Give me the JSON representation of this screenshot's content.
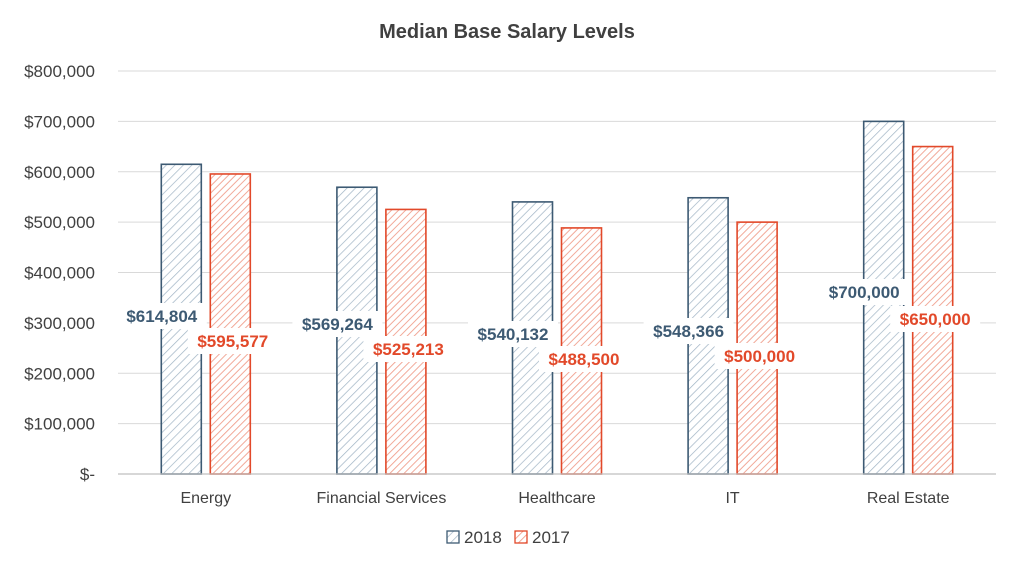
{
  "chart_data": {
    "type": "bar",
    "title": "Median Base Salary Levels",
    "xlabel": "",
    "ylabel": "",
    "categories": [
      "Energy",
      "Financial Services",
      "Healthcare",
      "IT",
      "Real Estate"
    ],
    "ylim": [
      0,
      800000
    ],
    "yticks": [
      0,
      100000,
      200000,
      300000,
      400000,
      500000,
      600000,
      700000,
      800000
    ],
    "ytick_labels": [
      "$-",
      "$100,000",
      "$200,000",
      "$300,000",
      "$400,000",
      "$500,000",
      "$600,000",
      "$700,000",
      "$800,000"
    ],
    "grid": true,
    "legend_position": "bottom",
    "series": [
      {
        "name": "2018",
        "color": "#3d5a73",
        "values": [
          614804,
          569264,
          540132,
          548366,
          700000
        ],
        "labels": [
          "$614,804",
          "$569,264",
          "$540,132",
          "$548,366",
          "$700,000"
        ]
      },
      {
        "name": "2017",
        "color": "#e2492a",
        "values": [
          595577,
          525213,
          488500,
          500000,
          650000
        ],
        "labels": [
          "$595,577",
          "$525,213",
          "$488,500",
          "$500,000",
          "$650,000"
        ]
      }
    ]
  }
}
